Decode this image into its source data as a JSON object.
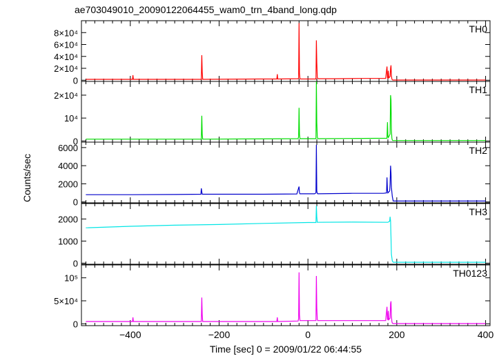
{
  "chart_data": {
    "type": "line",
    "title": "ae703049010_20090122064455_wam0_trn_4band_long.qdp",
    "xlabel": "Time [sec] 0 = 2009/01/22 06:44:55",
    "ylabel": "Counts/sec",
    "xlim": [
      -510,
      410
    ],
    "xticks": [
      -400,
      -200,
      0,
      200,
      400
    ],
    "xtick_labels": [
      "−400",
      "−200",
      "0",
      "200",
      "400"
    ],
    "panels": [
      {
        "name": "TH0",
        "color": "#ff0000",
        "ylim": [
          -2000,
          100000
        ],
        "yticks": [
          0,
          20000,
          40000,
          60000,
          80000
        ],
        "ytick_labels": [
          "0",
          "2×10⁴",
          "4×10⁴",
          "6×10⁴",
          "8×10⁴"
        ],
        "series": {
          "x": [
            -500,
            -395,
            -394,
            -393,
            -240,
            -239,
            -238,
            -237,
            -110,
            -70,
            -69,
            -68,
            -22,
            -21,
            -20,
            -19,
            -18,
            -17,
            18,
            19,
            20,
            21,
            22,
            23,
            60,
            120,
            175,
            178,
            179,
            180,
            181,
            182,
            185,
            186,
            187,
            188,
            189,
            190,
            191,
            192,
            193,
            400
          ],
          "y": [
            1500,
            1500,
            8500,
            1500,
            1500,
            42000,
            14000,
            1500,
            2000,
            2000,
            10000,
            2000,
            2500,
            4000,
            96000,
            12000,
            3000,
            2000,
            2000,
            67000,
            30000,
            5000,
            3000,
            2500,
            2500,
            3000,
            3000,
            23000,
            4000,
            3500,
            16000,
            4000,
            6000,
            20000,
            25000,
            8000,
            2000,
            800,
            300,
            300,
            300,
            300
          ]
        }
      },
      {
        "name": "TH1",
        "color": "#00dd00",
        "ylim": [
          -500,
          26000
        ],
        "yticks": [
          0,
          10000,
          20000
        ],
        "ytick_labels": [
          "0",
          "10⁴",
          "2×10⁴"
        ],
        "series": {
          "x": [
            -500,
            -240,
            -239,
            -238,
            -237,
            -22,
            -21,
            -20,
            -19,
            -18,
            18,
            19,
            20,
            21,
            22,
            178,
            179,
            180,
            181,
            185,
            186,
            187,
            188,
            189,
            190,
            191,
            192,
            400
          ],
          "y": [
            800,
            800,
            11000,
            3000,
            800,
            1000,
            2000,
            14500,
            3000,
            1000,
            1000,
            26000,
            8000,
            2000,
            1000,
            1200,
            8200,
            2000,
            1500,
            3000,
            20000,
            18000,
            5000,
            1200,
            400,
            200,
            200,
            200
          ]
        }
      },
      {
        "name": "TH2",
        "color": "#0000cc",
        "ylim": [
          -100,
          6600
        ],
        "yticks": [
          0,
          2000,
          4000,
          6000
        ],
        "ytick_labels": [
          "0",
          "2000",
          "4000",
          "6000"
        ],
        "series": {
          "x": [
            -500,
            -400,
            -300,
            -241,
            -240,
            -239,
            -238,
            -100,
            -25,
            -20,
            -19,
            -18,
            15,
            18,
            19,
            20,
            21,
            22,
            100,
            170,
            177,
            178,
            179,
            180,
            182,
            184,
            185,
            186,
            187,
            188,
            190,
            192,
            400
          ],
          "y": [
            800,
            800,
            820,
            850,
            1500,
            1100,
            850,
            850,
            880,
            1700,
            1000,
            900,
            900,
            1000,
            6300,
            1200,
            950,
            900,
            950,
            950,
            1000,
            2700,
            1300,
            1000,
            1100,
            1200,
            2000,
            4000,
            3200,
            1600,
            600,
            100,
            100
          ]
        }
      },
      {
        "name": "TH3",
        "color": "#00e5e5",
        "ylim": [
          -50,
          2700
        ],
        "yticks": [
          0,
          1000,
          2000
        ],
        "ytick_labels": [
          "0",
          "1000",
          "2000"
        ],
        "series": {
          "x": [
            -500,
            -400,
            -300,
            -200,
            -100,
            0,
            18,
            19,
            20,
            21,
            100,
            180,
            184,
            185,
            186,
            187,
            188,
            190,
            192,
            400
          ],
          "y": [
            1600,
            1670,
            1720,
            1750,
            1800,
            1840,
            1840,
            2600,
            2100,
            1850,
            1860,
            1850,
            1900,
            2100,
            1900,
            1200,
            400,
            100,
            40,
            40
          ]
        }
      },
      {
        "name": "TH0123",
        "color": "#ee00ee",
        "ylim": [
          -4000,
          128000
        ],
        "yticks": [
          0,
          50000,
          100000
        ],
        "ytick_labels": [
          "0",
          "5×10⁴",
          "10⁵"
        ],
        "series": {
          "x": [
            -500,
            -395,
            -394,
            -393,
            -240,
            -239,
            -238,
            -237,
            -70,
            -69,
            -68,
            -22,
            -21,
            -20,
            -19,
            -18,
            18,
            19,
            20,
            21,
            22,
            120,
            175,
            178,
            179,
            180,
            181,
            182,
            185,
            186,
            187,
            188,
            189,
            190,
            192,
            400
          ],
          "y": [
            5000,
            5000,
            14000,
            5000,
            5000,
            57000,
            20000,
            5000,
            5000,
            14000,
            5000,
            6000,
            12000,
            112000,
            20000,
            7000,
            7000,
            104000,
            35000,
            10000,
            7000,
            7000,
            7000,
            37000,
            10000,
            9000,
            28000,
            9000,
            12000,
            44000,
            49000,
            18000,
            5000,
            1500,
            500,
            500
          ]
        }
      }
    ]
  }
}
